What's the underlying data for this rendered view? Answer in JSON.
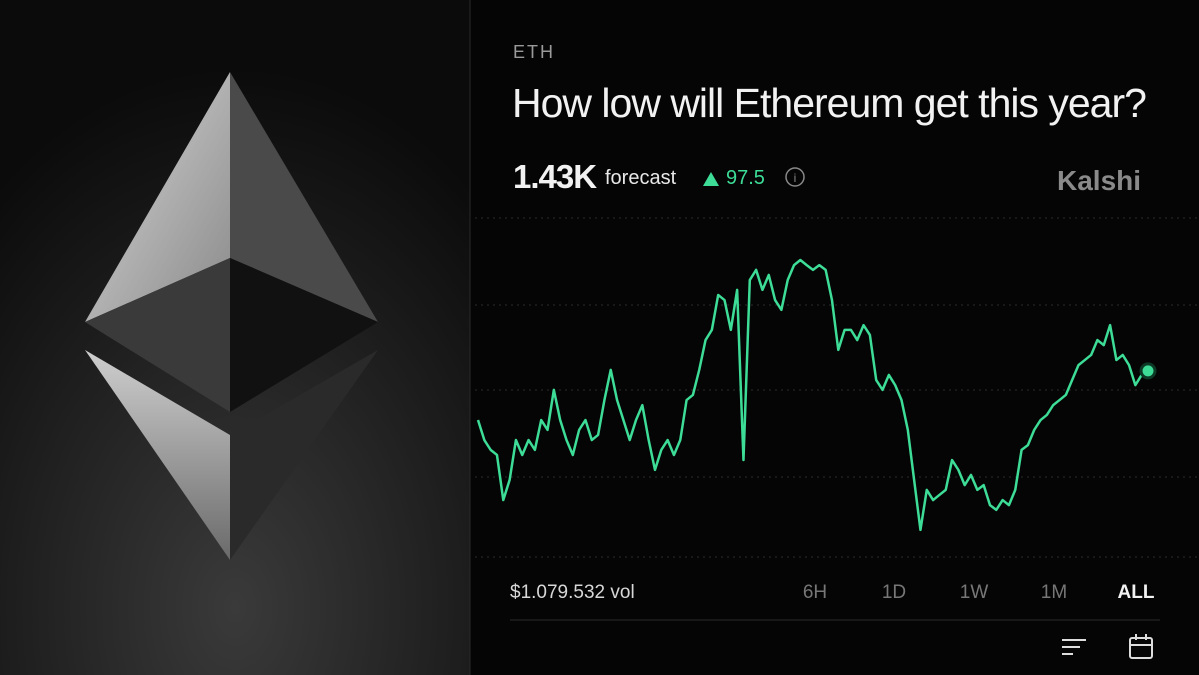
{
  "ticker": "ETH",
  "title": "How low will Ethereum get this year?",
  "forecast": {
    "value": "1.43K",
    "label": "forecast",
    "change": "97.5"
  },
  "brand": "Kalshi",
  "volume": "$1.079.532 vol",
  "ranges": [
    "6H",
    "1D",
    "1W",
    "1M",
    "ALL"
  ],
  "chart_data": {
    "type": "line",
    "color": "#3ddc97",
    "ylim": [
      0,
      100
    ],
    "series": [
      {
        "color": "#3ddc97",
        "values": [
          40.4,
          34.5,
          31.6,
          30.1,
          16.8,
          22.7,
          34.5,
          30.1,
          34.5,
          31.6,
          40.4,
          37.5,
          49.3,
          40.4,
          34.5,
          30.1,
          37.5,
          40.4,
          34.5,
          36.0,
          46.3,
          55.2,
          46.3,
          40.4,
          34.5,
          40.4,
          44.8,
          34.5,
          25.7,
          31.6,
          34.5,
          30.1,
          34.5,
          46.3,
          47.8,
          55.2,
          64.0,
          67.0,
          77.3,
          75.8,
          67.0,
          78.8,
          28.6,
          81.7,
          84.7,
          78.8,
          83.2,
          75.8,
          72.9,
          81.7,
          86.1,
          87.6,
          86.1,
          84.7,
          86.1,
          84.7,
          75.8,
          61.1,
          67.0,
          67.0,
          64.0,
          68.4,
          65.5,
          52.2,
          49.3,
          53.7,
          50.7,
          46.3,
          37.5,
          22.7,
          8.0,
          19.8,
          16.8,
          18.3,
          19.8,
          28.6,
          25.7,
          21.2,
          24.2,
          19.8,
          21.2,
          15.3,
          13.9,
          16.8,
          15.3,
          19.8,
          31.6,
          33.0,
          37.5,
          40.4,
          41.9,
          44.8,
          46.3,
          47.8,
          52.2,
          56.6,
          58.1,
          59.6,
          64.0,
          62.5,
          68.4,
          58.1,
          59.6,
          56.6,
          50.7,
          53.7,
          54.9
        ]
      }
    ]
  }
}
